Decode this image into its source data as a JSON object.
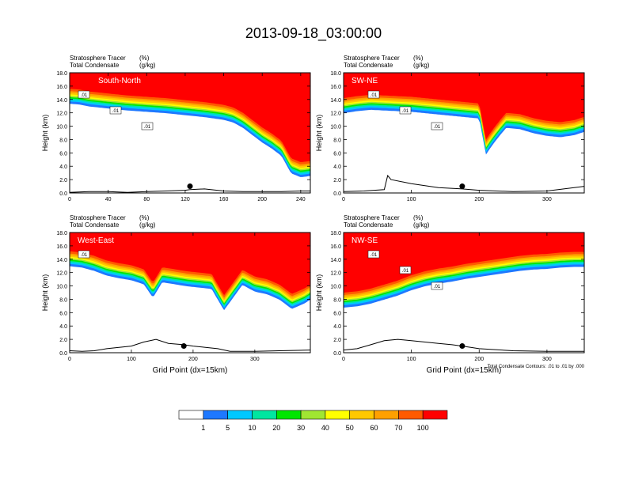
{
  "title": "2013-09-18_03:00:00",
  "colors": {
    "levels": [
      "#ffffff",
      "#1e78ff",
      "#00c8ff",
      "#00e6a0",
      "#00e600",
      "#a0e632",
      "#ffff00",
      "#ffc800",
      "#ffa000",
      "#ff5a00",
      "#ff0000"
    ],
    "contour": "#000000",
    "terrain": "#000000",
    "marker": "#000000"
  },
  "colorbar": {
    "labels": [
      "1",
      "5",
      "10",
      "20",
      "30",
      "40",
      "50",
      "60",
      "70",
      "100"
    ]
  },
  "chart_data": [
    {
      "type": "contour",
      "panel_label": "South-North",
      "subtitle_left_line1": "Stratosphere Tracer",
      "subtitle_left_line2": "Total Condensate",
      "subtitle_right_line1": "(%)",
      "subtitle_right_line2": "(g/kg)",
      "ylabel": "Height (km)",
      "xlabel": "",
      "xlim": [
        0,
        250
      ],
      "ylim": [
        0,
        18
      ],
      "xticks": [
        0,
        40,
        80,
        120,
        160,
        200,
        240
      ],
      "yticks": [
        0,
        2,
        4,
        6,
        8,
        10,
        12,
        14,
        16,
        18
      ],
      "tropopause_km": {
        "x": [
          0,
          10,
          20,
          40,
          60,
          80,
          100,
          120,
          140,
          160,
          170,
          180,
          190,
          200,
          210,
          220,
          230,
          240,
          250
        ],
        "y": [
          15.6,
          15.5,
          15.2,
          14.9,
          14.6,
          14.4,
          14.2,
          13.9,
          13.6,
          13.2,
          12.8,
          12.0,
          10.9,
          9.8,
          8.9,
          7.8,
          5.2,
          4.6,
          4.8
        ]
      },
      "contour_labels": [
        ".01",
        ".01",
        ".01"
      ],
      "terrain_km": {
        "x": [
          0,
          20,
          40,
          60,
          80,
          100,
          120,
          125,
          140,
          160,
          180,
          200,
          220,
          240,
          250
        ],
        "y": [
          0.1,
          0.2,
          0.2,
          0.1,
          0.2,
          0.3,
          0.4,
          0.5,
          0.6,
          0.3,
          0.2,
          0.2,
          0.2,
          0.3,
          0.3
        ]
      },
      "marker_x": 125,
      "marker_y_km": 1.0
    },
    {
      "type": "contour",
      "panel_label": "SW-NE",
      "subtitle_left_line1": "Stratosphere Tracer",
      "subtitle_left_line2": "Total Condensate",
      "subtitle_right_line1": "(%)",
      "subtitle_right_line2": "(g/kg)",
      "ylabel": "Height (km)",
      "xlabel": "",
      "xlim": [
        0,
        355
      ],
      "ylim": [
        0,
        18
      ],
      "xticks": [
        0,
        100,
        200,
        300
      ],
      "yticks": [
        0,
        2,
        4,
        6,
        8,
        10,
        12,
        14,
        16,
        18
      ],
      "tropopause_km": {
        "x": [
          0,
          20,
          40,
          60,
          80,
          100,
          120,
          140,
          160,
          180,
          200,
          210,
          220,
          230,
          240,
          260,
          280,
          300,
          320,
          340,
          355
        ],
        "y": [
          14.2,
          14.5,
          14.7,
          14.6,
          14.5,
          14.4,
          14.2,
          14.0,
          13.8,
          13.6,
          13.4,
          8.0,
          9.5,
          10.8,
          12.0,
          11.8,
          11.2,
          10.8,
          10.6,
          10.9,
          11.4
        ]
      },
      "contour_labels": [
        ".01",
        ".01",
        ".01"
      ],
      "terrain_km": {
        "x": [
          0,
          30,
          60,
          65,
          70,
          100,
          140,
          175,
          200,
          250,
          300,
          340,
          355
        ],
        "y": [
          0.2,
          0.3,
          0.5,
          2.6,
          2.0,
          1.4,
          0.8,
          0.6,
          0.4,
          0.2,
          0.3,
          0.8,
          1.0
        ]
      },
      "marker_x": 175,
      "marker_y_km": 1.0
    },
    {
      "type": "contour",
      "panel_label": "West-East",
      "subtitle_left_line1": "Stratosphere Tracer",
      "subtitle_left_line2": "Total Condensate",
      "subtitle_right_line1": "(%)",
      "subtitle_right_line2": "(g/kg)",
      "ylabel": "Height (km)",
      "xlabel": "Grid Point (dx=15km)",
      "xlim": [
        0,
        390
      ],
      "ylim": [
        0,
        18
      ],
      "xticks": [
        0,
        100,
        200,
        300
      ],
      "yticks": [
        0,
        2,
        4,
        6,
        8,
        10,
        12,
        14,
        16,
        18
      ],
      "tropopause_km": {
        "x": [
          0,
          20,
          40,
          60,
          80,
          100,
          120,
          135,
          150,
          170,
          190,
          210,
          230,
          250,
          265,
          280,
          300,
          320,
          340,
          360,
          380,
          390
        ],
        "y": [
          15.2,
          15.0,
          14.5,
          13.8,
          13.4,
          13.1,
          12.5,
          10.5,
          12.8,
          12.5,
          12.2,
          12.0,
          11.8,
          8.6,
          10.5,
          12.4,
          11.4,
          11.0,
          10.2,
          8.8,
          9.6,
          10.2
        ]
      },
      "contour_labels": [
        ".01"
      ],
      "terrain_km": {
        "x": [
          0,
          20,
          40,
          60,
          80,
          100,
          120,
          140,
          160,
          185,
          200,
          220,
          240,
          260,
          300,
          340,
          390
        ],
        "y": [
          0.3,
          0.2,
          0.3,
          0.6,
          0.8,
          1.0,
          1.6,
          2.0,
          1.4,
          1.2,
          1.0,
          0.8,
          0.6,
          0.2,
          0.2,
          0.3,
          0.4
        ]
      },
      "marker_x": 185,
      "marker_y_km": 1.0
    },
    {
      "type": "contour",
      "panel_label": "NW-SE",
      "subtitle_left_line1": "Stratosphere Tracer",
      "subtitle_left_line2": "Total Condensate",
      "subtitle_right_line1": "(%)",
      "subtitle_right_line2": "(g/kg)",
      "ylabel": "Height (km)",
      "xlabel": "Grid Point (dx=15km)",
      "footnote": "Total Condensate Contours: .01 to .01 by .000",
      "xlim": [
        0,
        355
      ],
      "ylim": [
        0,
        18
      ],
      "xticks": [
        0,
        100,
        200,
        300
      ],
      "yticks": [
        0,
        2,
        4,
        6,
        8,
        10,
        12,
        14,
        16,
        18
      ],
      "tropopause_km": {
        "x": [
          0,
          20,
          40,
          60,
          80,
          100,
          120,
          140,
          160,
          180,
          200,
          220,
          240,
          260,
          280,
          300,
          320,
          340,
          355
        ],
        "y": [
          9.0,
          9.2,
          9.6,
          10.2,
          10.8,
          11.6,
          12.2,
          12.6,
          12.9,
          13.3,
          13.6,
          13.9,
          14.2,
          14.5,
          14.7,
          14.8,
          15.0,
          15.1,
          15.1
        ]
      },
      "contour_labels": [
        ".01",
        ".01",
        ".01"
      ],
      "terrain_km": {
        "x": [
          0,
          20,
          40,
          60,
          80,
          100,
          120,
          140,
          160,
          175,
          200,
          250,
          300,
          355
        ],
        "y": [
          0.4,
          0.6,
          1.2,
          1.8,
          2.0,
          1.8,
          1.6,
          1.4,
          1.2,
          1.0,
          0.6,
          0.3,
          0.2,
          0.2
        ]
      },
      "marker_x": 175,
      "marker_y_km": 1.0
    }
  ]
}
